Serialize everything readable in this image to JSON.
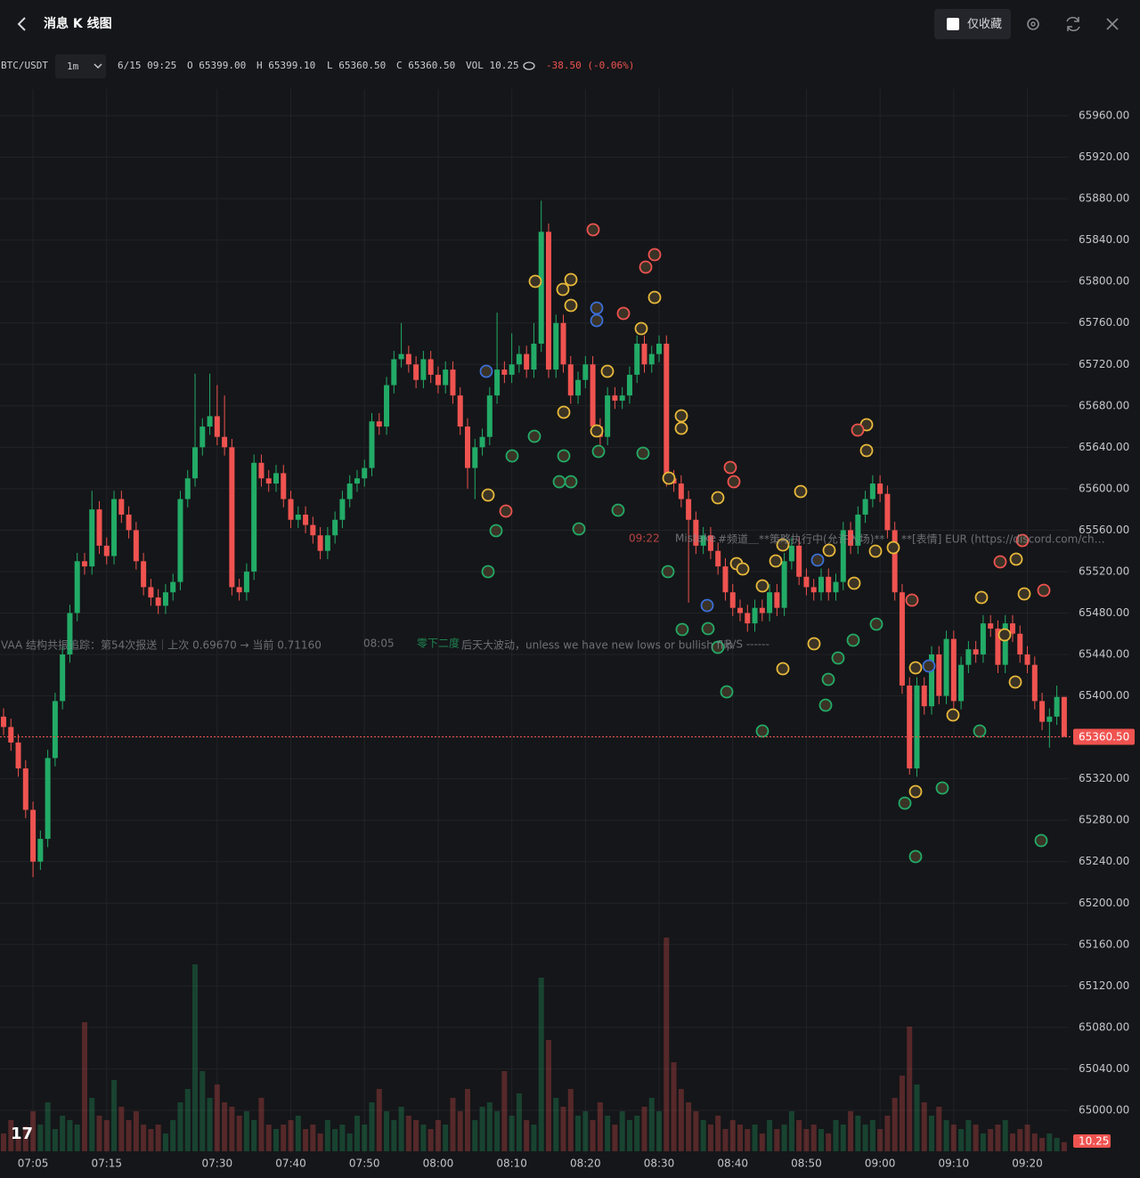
{
  "header": {
    "title": "消息 K 线图",
    "favorites_only": "仅收藏"
  },
  "info": {
    "symbol": "BTC/USDT",
    "interval": "1m",
    "time": "6/15 09:25",
    "open": "O 65399.00",
    "high": "H 65399.10",
    "low": "L 65360.50",
    "close": "C 65360.50",
    "volume": "VOL 10.25",
    "change": "-38.50 (-0.06%)"
  },
  "chart_data": {
    "type": "candlestick",
    "up_color": "#22ab67",
    "down_color": "#ef5350",
    "grid": true,
    "categories": [
      null,
      null,
      null,
      null,
      "07:05",
      null,
      null,
      null,
      null,
      null,
      null,
      null,
      null,
      null,
      "07:15",
      null,
      null,
      null,
      null,
      null,
      null,
      null,
      null,
      null,
      null,
      null,
      null,
      null,
      null,
      "07:30",
      null,
      null,
      null,
      null,
      null,
      null,
      null,
      null,
      null,
      "07:40",
      null,
      null,
      null,
      null,
      null,
      null,
      null,
      null,
      null,
      "07:50",
      null,
      null,
      null,
      null,
      null,
      null,
      null,
      null,
      null,
      "08:00",
      null,
      null,
      null,
      null,
      null,
      null,
      null,
      null,
      null,
      "08:10",
      null,
      null,
      null,
      null,
      null,
      null,
      null,
      null,
      null,
      "08:20",
      null,
      null,
      null,
      null,
      null,
      null,
      null,
      null,
      null,
      "08:30",
      null,
      null,
      null,
      null,
      null,
      null,
      null,
      null,
      null,
      "08:40",
      null,
      null,
      null,
      null,
      null,
      null,
      null,
      null,
      null,
      "08:50",
      null,
      null,
      null,
      null,
      null,
      null,
      null,
      null,
      null,
      "09:00",
      null,
      null,
      null,
      null,
      null,
      null,
      null,
      null,
      null,
      "09:10",
      null,
      null,
      null,
      null,
      null,
      null,
      null,
      null,
      null,
      "09:20",
      null,
      null,
      null,
      null,
      null
    ],
    "open": [
      65380,
      65370,
      65355,
      65330,
      65290,
      65240,
      65262,
      65340,
      65395,
      65440,
      65480,
      65530,
      65525,
      65580,
      65545,
      65535,
      65590,
      65575,
      65560,
      65530,
      65505,
      65495,
      65487,
      65500,
      65510,
      65590,
      65610,
      65640,
      65660,
      65670,
      65650,
      65640,
      65505,
      65500,
      65520,
      65625,
      65610,
      65605,
      65615,
      65590,
      65570,
      65575,
      65565,
      65555,
      65540,
      65555,
      65570,
      65590,
      65605,
      65610,
      65620,
      65665,
      65660,
      65700,
      65725,
      65730,
      65720,
      65705,
      65725,
      65710,
      65700,
      65715,
      65690,
      65660,
      65620,
      65640,
      65650,
      65690,
      65715,
      65710,
      65720,
      65730,
      65715,
      65740,
      65848,
      65715,
      65760,
      65720,
      65690,
      65705,
      65720,
      65660,
      65650,
      65690,
      65685,
      65690,
      65710,
      65740,
      65720,
      65730,
      65740,
      65610,
      65605,
      65590,
      65570,
      65545,
      65555,
      65540,
      65525,
      65500,
      65485,
      65480,
      65470,
      65485,
      65480,
      65500,
      65485,
      65530,
      65545,
      65515,
      65505,
      65500,
      65515,
      65500,
      65510,
      65560,
      65545,
      65575,
      65590,
      65605,
      65595,
      65560,
      65500,
      65410,
      65330,
      65410,
      65390,
      65440,
      65400,
      65455,
      65395,
      65430,
      65445,
      65440,
      65470,
      65465,
      65430,
      65470,
      65460,
      65440,
      65430,
      65395,
      65375,
      65380,
      65399
    ],
    "high": [
      65388,
      65378,
      65363,
      65338,
      65298,
      65270,
      65348,
      65403,
      65448,
      65488,
      65538,
      65538,
      65598,
      65588,
      65553,
      65598,
      65598,
      65583,
      65568,
      65538,
      65513,
      65503,
      65508,
      65518,
      65598,
      65618,
      65711,
      65668,
      65711,
      65700,
      65690,
      65648,
      65513,
      65528,
      65633,
      65633,
      65618,
      65623,
      65623,
      65598,
      65583,
      65583,
      65573,
      65563,
      65563,
      65578,
      65598,
      65613,
      65618,
      65628,
      65673,
      65673,
      65708,
      65733,
      65760,
      65738,
      65728,
      65733,
      65733,
      65718,
      65723,
      65723,
      65698,
      65668,
      65648,
      65658,
      65698,
      65770,
      65723,
      65750,
      65738,
      65738,
      65760,
      65878,
      65856,
      65768,
      65768,
      65728,
      65713,
      65728,
      65728,
      65668,
      65698,
      65698,
      65698,
      65718,
      65748,
      65748,
      65738,
      65748,
      65748,
      65618,
      65613,
      65598,
      65578,
      65563,
      65563,
      65548,
      65533,
      65508,
      65493,
      65488,
      65493,
      65493,
      65508,
      65508,
      65538,
      65553,
      65553,
      65523,
      65513,
      65523,
      65523,
      65518,
      65568,
      65568,
      65583,
      65598,
      65613,
      65613,
      65603,
      65568,
      65508,
      65418,
      65418,
      65418,
      65448,
      65448,
      65463,
      65463,
      65438,
      65453,
      65453,
      65478,
      65478,
      65473,
      65478,
      65478,
      65468,
      65448,
      65438,
      65403,
      65388,
      65410,
      65399.1
    ],
    "low": [
      65362,
      65347,
      65322,
      65282,
      65225,
      65232,
      65254,
      65332,
      65387,
      65432,
      65472,
      65517,
      65517,
      65537,
      65527,
      65527,
      65567,
      65552,
      65522,
      65497,
      65487,
      65479,
      65479,
      65492,
      65502,
      65582,
      65602,
      65632,
      65652,
      65642,
      65632,
      65497,
      65492,
      65492,
      65512,
      65602,
      65597,
      65597,
      65582,
      65562,
      65562,
      65557,
      65547,
      65532,
      65532,
      65547,
      65562,
      65582,
      65597,
      65602,
      65612,
      65652,
      65652,
      65692,
      65717,
      65712,
      65697,
      65697,
      65702,
      65692,
      65692,
      65682,
      65652,
      65600,
      65590,
      65632,
      65642,
      65682,
      65702,
      65702,
      65712,
      65707,
      65707,
      65732,
      65707,
      65707,
      65712,
      65682,
      65682,
      65697,
      65652,
      65642,
      65642,
      65677,
      65677,
      65682,
      65702,
      65712,
      65712,
      65722,
      65602,
      65597,
      65582,
      65490,
      65537,
      65537,
      65532,
      65517,
      65492,
      65477,
      65472,
      65462,
      65462,
      65472,
      65472,
      65477,
      65477,
      65522,
      65507,
      65497,
      65492,
      65492,
      65492,
      65492,
      65502,
      65537,
      65537,
      65567,
      65582,
      65587,
      65552,
      65492,
      65402,
      65324,
      65322,
      65382,
      65382,
      65392,
      65392,
      65387,
      65387,
      65422,
      65432,
      65432,
      65457,
      65422,
      65422,
      65452,
      65432,
      65422,
      65387,
      65367,
      65350,
      65372,
      65360.5
    ],
    "close": [
      65370,
      65355,
      65330,
      65290,
      65240,
      65262,
      65340,
      65395,
      65440,
      65480,
      65530,
      65525,
      65580,
      65545,
      65535,
      65590,
      65575,
      65560,
      65530,
      65505,
      65495,
      65487,
      65500,
      65510,
      65590,
      65610,
      65640,
      65660,
      65670,
      65650,
      65640,
      65505,
      65500,
      65520,
      65625,
      65610,
      65605,
      65615,
      65590,
      65570,
      65575,
      65565,
      65555,
      65540,
      65555,
      65570,
      65590,
      65605,
      65610,
      65620,
      65665,
      65660,
      65700,
      65725,
      65730,
      65720,
      65705,
      65725,
      65710,
      65700,
      65715,
      65690,
      65660,
      65620,
      65640,
      65650,
      65690,
      65715,
      65710,
      65720,
      65730,
      65715,
      65740,
      65848,
      65715,
      65760,
      65720,
      65690,
      65705,
      65720,
      65660,
      65650,
      65690,
      65685,
      65690,
      65710,
      65740,
      65720,
      65730,
      65740,
      65610,
      65605,
      65590,
      65570,
      65545,
      65555,
      65540,
      65525,
      65500,
      65485,
      65480,
      65470,
      65485,
      65480,
      65500,
      65485,
      65530,
      65545,
      65515,
      65505,
      65500,
      65515,
      65500,
      65510,
      65560,
      65545,
      65575,
      65590,
      65605,
      65595,
      65560,
      65500,
      65410,
      65330,
      65410,
      65390,
      65440,
      65400,
      65455,
      65395,
      65430,
      65445,
      65440,
      65470,
      65465,
      65430,
      65470,
      65460,
      65440,
      65430,
      65395,
      65375,
      65380,
      65399,
      65360.5
    ],
    "volume": [
      20,
      35,
      15,
      28,
      45,
      30,
      55,
      25,
      40,
      35,
      30,
      145,
      60,
      40,
      35,
      80,
      50,
      35,
      45,
      30,
      25,
      30,
      20,
      35,
      55,
      70,
      210,
      90,
      60,
      75,
      55,
      50,
      40,
      45,
      35,
      60,
      30,
      25,
      30,
      35,
      40,
      25,
      30,
      20,
      35,
      25,
      30,
      20,
      40,
      30,
      55,
      70,
      45,
      35,
      50,
      40,
      35,
      30,
      25,
      35,
      30,
      60,
      45,
      70,
      35,
      50,
      55,
      45,
      90,
      40,
      65,
      35,
      30,
      195,
      125,
      60,
      50,
      70,
      40,
      45,
      35,
      55,
      40,
      30,
      45,
      35,
      40,
      50,
      60,
      45,
      240,
      100,
      70,
      55,
      45,
      35,
      30,
      40,
      25,
      35,
      30,
      25,
      30,
      20,
      35,
      25,
      30,
      45,
      35,
      25,
      30,
      25,
      20,
      35,
      30,
      45,
      40,
      30,
      35,
      25,
      40,
      60,
      85,
      140,
      75,
      55,
      40,
      50,
      35,
      30,
      25,
      35,
      30,
      20,
      25,
      30,
      35,
      20,
      25,
      30,
      20,
      15,
      20,
      15,
      10.25
    ],
    "ylim": [
      64958.7,
      65985.8
    ],
    "yticks": [
      {
        "value": 65000,
        "label": "65000.00"
      },
      {
        "value": 65040,
        "label": "65040.00"
      },
      {
        "value": 65080,
        "label": "65080.00"
      },
      {
        "value": 65120,
        "label": "65120.00"
      },
      {
        "value": 65160,
        "label": "65160.00"
      },
      {
        "value": 65200,
        "label": "65200.00"
      },
      {
        "value": 65240,
        "label": "65240.00"
      },
      {
        "value": 65280,
        "label": "65280.00"
      },
      {
        "value": 65320,
        "label": "65320.00"
      },
      {
        "value": 65360,
        "label": "65360.00"
      },
      {
        "value": 65400,
        "label": "65400.00"
      },
      {
        "value": 65440,
        "label": "65440.00"
      },
      {
        "value": 65480,
        "label": "65480.00"
      },
      {
        "value": 65520,
        "label": "65520.00"
      },
      {
        "value": 65560,
        "label": "65560.00"
      },
      {
        "value": 65600,
        "label": "65600.00"
      },
      {
        "value": 65640,
        "label": "65640.00"
      },
      {
        "value": 65680,
        "label": "65680.00"
      },
      {
        "value": 65720,
        "label": "65720.00"
      },
      {
        "value": 65760,
        "label": "65760.00"
      },
      {
        "value": 65800,
        "label": "65800.00"
      },
      {
        "value": 65840,
        "label": "65840.00"
      },
      {
        "value": 65880,
        "label": "65880.00"
      },
      {
        "value": 65920,
        "label": "65920.00"
      },
      {
        "value": 65960,
        "label": "65960.00"
      }
    ],
    "volume_lim": [
      0,
      250
    ],
    "last_label": {
      "value": 65360.5,
      "label": "65360.50"
    },
    "last_volume_label": 10.25,
    "annotations": [
      "VAA 结构共振追踪：第54次报送｜上次 0.69670 → 当前 0.71160",
      "08:05",
      "零下二度",
      "后天大波动，unless we have new lows or bullish flip",
      "R/S ------",
      "09:22",
      "Mistake",
      "#频道＿**策略执行中(允许入场)**",
      "**[表情] EUR (https://discord.com/ch…"
    ]
  }
}
